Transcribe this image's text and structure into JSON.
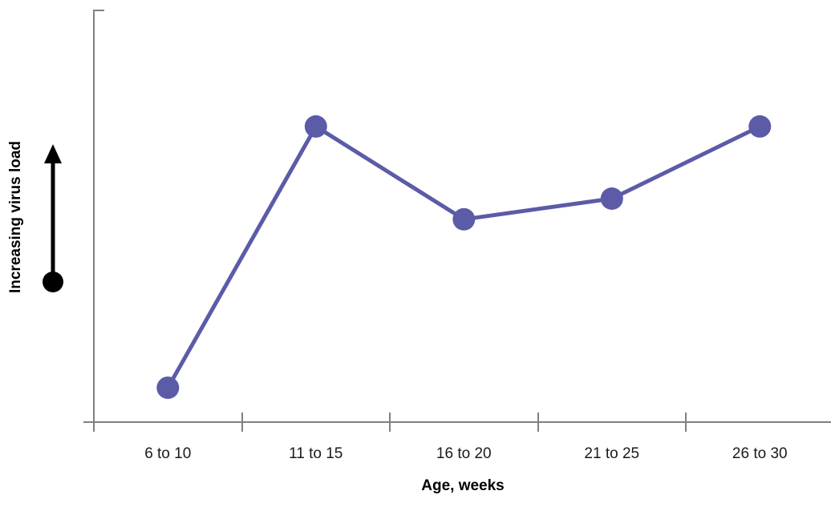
{
  "chart_data": {
    "type": "line",
    "xlabel": "Age, weeks",
    "ylabel": "Increasing virus load",
    "categories": [
      "6 to 10",
      "11 to 15",
      "16 to 20",
      "21 to 25",
      "26 to 30"
    ],
    "series": [
      {
        "values": [
          1,
          8.6,
          5.9,
          6.5,
          8.6
        ]
      }
    ],
    "ylim": [
      0,
      12
    ],
    "y_tick_labels_shown": false,
    "grid": false,
    "legend": "none",
    "colors": {
      "line": "#5b5ba8",
      "axis": "#808080",
      "arrow": "#000000",
      "text": "#1a1a1a"
    }
  }
}
